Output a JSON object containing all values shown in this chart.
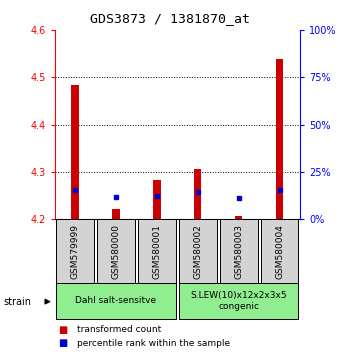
{
  "title": "GDS3873 / 1381870_at",
  "samples": [
    "GSM579999",
    "GSM580000",
    "GSM580001",
    "GSM580002",
    "GSM580003",
    "GSM580004"
  ],
  "red_values": [
    4.485,
    4.222,
    4.283,
    4.307,
    4.207,
    4.538
  ],
  "blue_values": [
    4.263,
    4.248,
    4.25,
    4.257,
    4.245,
    4.263
  ],
  "y_min": 4.2,
  "y_max": 4.6,
  "y_ticks_left": [
    4.2,
    4.3,
    4.4,
    4.5,
    4.6
  ],
  "y_ticks_right": [
    0,
    25,
    50,
    75,
    100
  ],
  "group1_label": "Dahl salt-sensitve",
  "group2_label": "S.LEW(10)x12x2x3x5\ncongenic",
  "bar_color_red": "#CC0000",
  "bar_color_blue": "#0000CC",
  "green_color": "#90EE90",
  "gray_color": "#d3d3d3",
  "title_fontsize": 9.5,
  "axis_fontsize": 7,
  "label_fontsize": 6.5,
  "legend_fontsize": 6.5
}
